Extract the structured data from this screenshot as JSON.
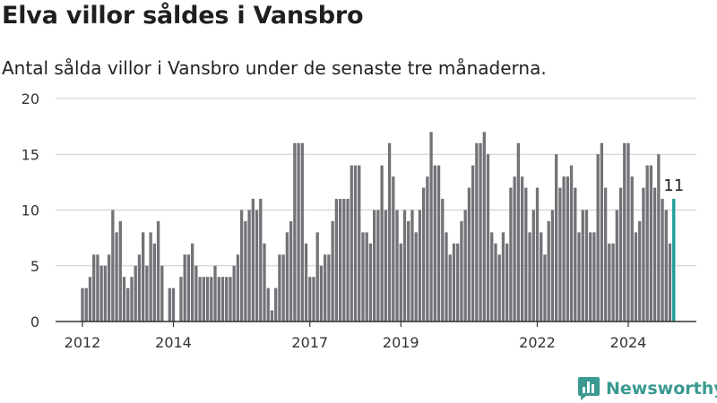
{
  "title": "Elva villor såldes i Vansbro",
  "subtitle": "Antal sålda villor i Vansbro under de senaste tre månaderna.",
  "brand": {
    "name": "Newsworthy",
    "icon": "newsworthy-logo-icon",
    "color": "#3a9a92"
  },
  "colors": {
    "bar": "#737277",
    "highlight": "#1b9c93",
    "grid": "#cccccc",
    "axis": "#333333"
  },
  "chart_data": {
    "type": "bar",
    "title": "",
    "xlabel": "",
    "ylabel": "",
    "ylim": [
      0,
      20
    ],
    "y_ticks": [
      0,
      5,
      10,
      15,
      20
    ],
    "x_ticks": [
      "2012",
      "2014",
      "2017",
      "2019",
      "2022",
      "2024"
    ],
    "grid": true,
    "legend": "none",
    "start": "2012-01",
    "frequency": "monthly",
    "values": [
      3,
      3,
      4,
      6,
      6,
      5,
      5,
      6,
      10,
      8,
      9,
      4,
      3,
      4,
      5,
      6,
      8,
      5,
      8,
      7,
      9,
      5,
      0,
      3,
      3,
      0,
      4,
      6,
      6,
      7,
      5,
      4,
      4,
      4,
      4,
      5,
      4,
      4,
      4,
      4,
      5,
      6,
      10,
      9,
      10,
      11,
      10,
      11,
      7,
      3,
      1,
      3,
      6,
      6,
      8,
      9,
      16,
      16,
      16,
      7,
      4,
      4,
      8,
      5,
      6,
      6,
      9,
      11,
      11,
      11,
      11,
      14,
      14,
      14,
      8,
      8,
      7,
      10,
      10,
      14,
      10,
      16,
      13,
      10,
      7,
      10,
      9,
      10,
      8,
      10,
      12,
      13,
      17,
      14,
      14,
      11,
      8,
      6,
      7,
      7,
      9,
      10,
      12,
      14,
      16,
      16,
      17,
      15,
      8,
      7,
      6,
      8,
      7,
      12,
      13,
      16,
      13,
      12,
      8,
      10,
      12,
      8,
      6,
      9,
      10,
      15,
      12,
      13,
      13,
      14,
      12,
      8,
      10,
      10,
      8,
      8,
      15,
      16,
      12,
      7,
      7,
      10,
      12,
      16,
      16,
      13,
      8,
      9,
      12,
      14,
      14,
      12,
      15,
      11,
      10,
      7,
      11
    ],
    "highlight": {
      "label": "11",
      "value": 11
    }
  }
}
